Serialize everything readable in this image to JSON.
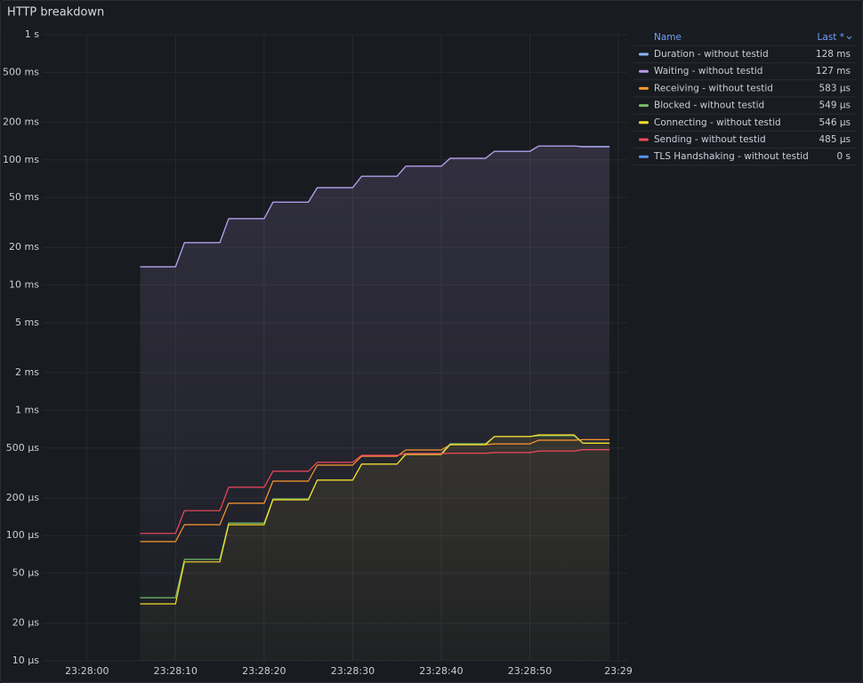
{
  "chart_data": {
    "type": "line",
    "title": "HTTP breakdown",
    "log_y": true,
    "grid": true,
    "legend_position": "right",
    "legend": {
      "columns": [
        "Name",
        "Last *"
      ]
    },
    "x": [
      "23:28:06",
      "23:28:10",
      "23:28:11",
      "23:28:15",
      "23:28:16",
      "23:28:20",
      "23:28:21",
      "23:28:25",
      "23:28:26",
      "23:28:30",
      "23:28:31",
      "23:28:35",
      "23:28:36",
      "23:28:40",
      "23:28:41",
      "23:28:45",
      "23:28:46",
      "23:28:50",
      "23:28:51",
      "23:28:55",
      "23:28:56",
      "23:28:59"
    ],
    "xlim": [
      "23:27:55",
      "23:29:01"
    ],
    "xticks": [
      "23:28:00",
      "23:28:10",
      "23:28:20",
      "23:28:30",
      "23:28:40",
      "23:28:50",
      "23:29"
    ],
    "ylim": [
      1e-05,
      1
    ],
    "yticks": [
      {
        "value": 1,
        "label": "1 s"
      },
      {
        "value": 0.5,
        "label": "500 ms"
      },
      {
        "value": 0.2,
        "label": "200 ms"
      },
      {
        "value": 0.1,
        "label": "100 ms"
      },
      {
        "value": 0.05,
        "label": "50 ms"
      },
      {
        "value": 0.02,
        "label": "20 ms"
      },
      {
        "value": 0.01,
        "label": "10 ms"
      },
      {
        "value": 0.005,
        "label": "5 ms"
      },
      {
        "value": 0.002,
        "label": "2 ms"
      },
      {
        "value": 0.001,
        "label": "1 ms"
      },
      {
        "value": 0.0005,
        "label": "500 µs"
      },
      {
        "value": 0.0002,
        "label": "200 µs"
      },
      {
        "value": 0.0001,
        "label": "100 µs"
      },
      {
        "value": 5e-05,
        "label": "50 µs"
      },
      {
        "value": 2e-05,
        "label": "20 µs"
      },
      {
        "value": 1e-05,
        "label": "10 µs"
      }
    ],
    "series": [
      {
        "name": "Duration - without testid",
        "color": "#8ab8ff",
        "last": {
          "value": 0.128,
          "label": "128 ms"
        },
        "values": [
          0.014,
          0.014,
          0.0218,
          0.0218,
          0.0339,
          0.0339,
          0.046,
          0.046,
          0.06,
          0.06,
          0.074,
          0.074,
          0.089,
          0.089,
          0.103,
          0.103,
          0.117,
          0.117,
          0.129,
          0.129,
          0.128,
          0.128
        ]
      },
      {
        "name": "Waiting - without testid",
        "color": "#b99be8",
        "fill": true,
        "last": {
          "value": 0.127,
          "label": "127 ms"
        },
        "values": [
          0.014,
          0.014,
          0.0218,
          0.0218,
          0.0339,
          0.0339,
          0.046,
          0.046,
          0.06,
          0.06,
          0.074,
          0.074,
          0.089,
          0.089,
          0.103,
          0.103,
          0.117,
          0.117,
          0.129,
          0.129,
          0.127,
          0.127
        ]
      },
      {
        "name": "Receiving - without testid",
        "color": "#ff9830",
        "last": {
          "value": 0.000583,
          "label": "583 µs"
        },
        "values": [
          8.95e-05,
          8.95e-05,
          0.000122,
          0.000122,
          0.000181,
          0.000181,
          0.000272,
          0.000272,
          0.000365,
          0.000365,
          0.00043,
          0.00043,
          0.000482,
          0.000482,
          0.000532,
          0.000532,
          0.00054,
          0.00054,
          0.000577,
          0.000577,
          0.000583,
          0.000583
        ]
      },
      {
        "name": "Blocked - without testid",
        "color": "#73bf69",
        "last": {
          "value": 0.000549,
          "label": "549 µs"
        },
        "values": [
          3.19e-05,
          3.19e-05,
          6.45e-05,
          6.45e-05,
          0.000126,
          0.000126,
          0.000196,
          0.000196,
          0.000277,
          0.000277,
          0.000372,
          0.000372,
          0.000452,
          0.000452,
          0.000541,
          0.000541,
          0.000617,
          0.000617,
          0.000627,
          0.000627,
          0.000549,
          0.000549
        ]
      },
      {
        "name": "Connecting - without testid",
        "color": "#fade2a",
        "fill": true,
        "last": {
          "value": 0.000546,
          "label": "546 µs"
        },
        "values": [
          2.85e-05,
          2.85e-05,
          6.16e-05,
          6.16e-05,
          0.000122,
          0.000122,
          0.000193,
          0.000193,
          0.000277,
          0.000277,
          0.000372,
          0.000372,
          0.000444,
          0.000444,
          0.000532,
          0.000532,
          0.000617,
          0.000617,
          0.000637,
          0.000637,
          0.000546,
          0.000546
        ]
      },
      {
        "name": "Sending - without testid",
        "color": "#f2495c",
        "last": {
          "value": 0.000485,
          "label": "485 µs"
        },
        "values": [
          0.000104,
          0.000104,
          0.000158,
          0.000158,
          0.000243,
          0.000243,
          0.000326,
          0.000326,
          0.000384,
          0.000384,
          0.000437,
          0.000437,
          0.000452,
          0.000452,
          0.000455,
          0.000455,
          0.00046,
          0.00046,
          0.000474,
          0.000474,
          0.000485,
          0.000485
        ]
      },
      {
        "name": "TLS Handshaking - without testid",
        "color": "#5794f2",
        "last": {
          "value": 0,
          "label": "0 s"
        }
      }
    ]
  }
}
